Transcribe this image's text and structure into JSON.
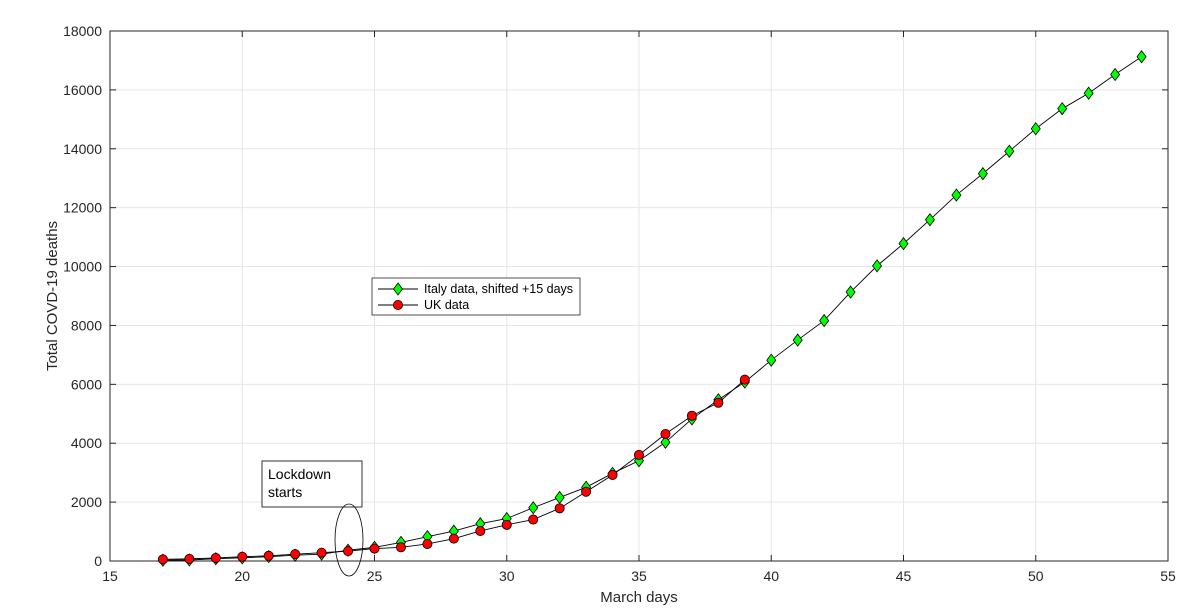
{
  "chart_data": {
    "type": "line",
    "title": "",
    "xlabel": "March days",
    "ylabel": "Total COVD-19 deaths",
    "xlim": [
      15,
      55
    ],
    "ylim": [
      0,
      18000
    ],
    "xticks": [
      15,
      20,
      25,
      30,
      35,
      40,
      45,
      50,
      55
    ],
    "yticks": [
      0,
      2000,
      4000,
      6000,
      8000,
      10000,
      12000,
      14000,
      16000,
      18000
    ],
    "grid": true,
    "legend_position": "center-left",
    "series": [
      {
        "name": "Italy data, shifted +15 days",
        "marker": "diamond",
        "marker_color": "#00ff00",
        "x": [
          17,
          18,
          19,
          20,
          21,
          22,
          23,
          24,
          25,
          26,
          27,
          28,
          29,
          30,
          31,
          32,
          33,
          34,
          35,
          36,
          37,
          38,
          39,
          40,
          41,
          42,
          43,
          44,
          45,
          46,
          47,
          48,
          49,
          50,
          51,
          52,
          53,
          54
        ],
        "y": [
          29,
          34,
          79,
          107,
          148,
          197,
          233,
          366,
          463,
          631,
          827,
          1016,
          1266,
          1441,
          1809,
          2158,
          2503,
          2978,
          3405,
          4032,
          4825,
          5476,
          6077,
          6820,
          7503,
          8165,
          9134,
          10023,
          10779,
          11591,
          12428,
          13155,
          13915,
          14681,
          15362,
          15887,
          16523,
          17127
        ]
      },
      {
        "name": "UK data",
        "marker": "circle",
        "marker_color": "#ff0000",
        "x": [
          17,
          18,
          19,
          20,
          21,
          22,
          23,
          24,
          25,
          26,
          27,
          28,
          29,
          30,
          31,
          32,
          33,
          34,
          35,
          36,
          37,
          38,
          39
        ],
        "y": [
          55,
          72,
          103,
          144,
          177,
          233,
          281,
          335,
          422,
          465,
          578,
          759,
          1019,
          1228,
          1408,
          1789,
          2352,
          2921,
          3605,
          4313,
          4934,
          5373,
          6159
        ]
      }
    ],
    "annotations": [
      {
        "text": "Lockdown\nstarts"
      }
    ]
  }
}
